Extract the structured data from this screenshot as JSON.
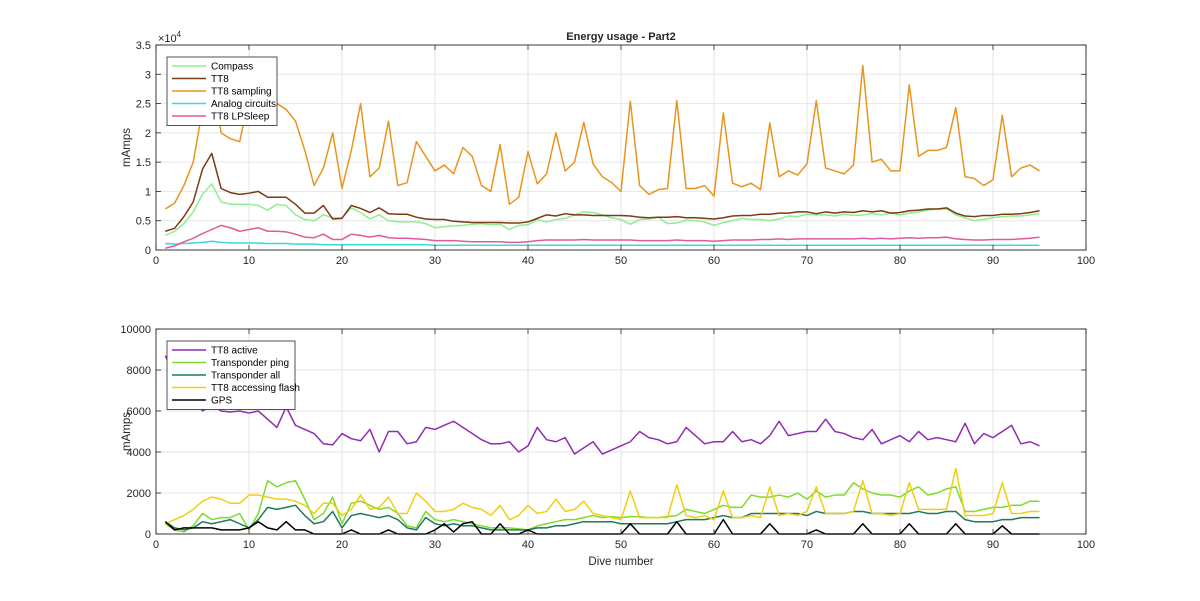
{
  "chart_data": [
    {
      "type": "line",
      "title": "Energy usage - Part2",
      "xlabel": "",
      "ylabel": "mAmps",
      "xlim": [
        0,
        100
      ],
      "ylim": [
        0,
        35000
      ],
      "xticks": [
        0,
        10,
        20,
        30,
        40,
        50,
        60,
        70,
        80,
        90,
        100
      ],
      "yticks": [
        0,
        5000,
        10000,
        15000,
        20000,
        25000,
        30000,
        35000
      ],
      "ytick_labels": [
        "0",
        "0.5",
        "1",
        "1.5",
        "2",
        "2.5",
        "3",
        "3.5"
      ],
      "exponent_label": "×10",
      "exponent_power": "4",
      "grid": true,
      "legend_position": "top-left",
      "series": [
        {
          "name": "Compass",
          "color": "#90ee90",
          "x_start": 1,
          "values": [
            2500,
            3200,
            4500,
            6500,
            9500,
            11300,
            8200,
            7800,
            7800,
            7800,
            7600,
            6800,
            7800,
            7600,
            6000,
            5200,
            5000,
            6000,
            5500,
            5500,
            7200,
            6400,
            5300,
            6000,
            5000,
            4800,
            4800,
            4800,
            4500,
            3800,
            4000,
            4100,
            4200,
            4400,
            4500,
            4300,
            4400,
            3500,
            4200,
            4300,
            5200,
            4800,
            5200,
            5400,
            6000,
            6500,
            6400,
            6000,
            5500,
            5200,
            4400,
            5200,
            5300,
            5600,
            4500,
            4600,
            5100,
            5000,
            4800,
            4200,
            4700,
            5000,
            5400,
            5200,
            5200,
            5000,
            5300,
            5800,
            5700,
            6100,
            6000,
            6000,
            5800,
            6100,
            5900,
            6000,
            6200,
            6000,
            6300,
            6000,
            6300,
            6500,
            6800,
            7000,
            7000,
            6000,
            5500,
            5000,
            5200,
            5500,
            5700,
            5800,
            5800,
            6000,
            6200
          ]
        },
        {
          "name": "TT8",
          "color": "#7b3b14",
          "x_start": 1,
          "values": [
            3200,
            3700,
            5700,
            8200,
            13800,
            16500,
            10500,
            9800,
            9500,
            9700,
            10000,
            9000,
            9000,
            9000,
            7800,
            6300,
            6300,
            7600,
            5300,
            5400,
            7600,
            7100,
            6400,
            7200,
            6200,
            6100,
            6100,
            5600,
            5300,
            5200,
            5200,
            4900,
            4800,
            4700,
            4700,
            4700,
            4700,
            4600,
            4600,
            4800,
            5400,
            6000,
            5800,
            6200,
            6000,
            6000,
            5900,
            5900,
            5900,
            5900,
            5800,
            5600,
            5500,
            5600,
            5600,
            5700,
            5500,
            5500,
            5400,
            5300,
            5500,
            5800,
            5900,
            5900,
            6100,
            6100,
            6300,
            6300,
            6500,
            6500,
            6200,
            6500,
            6300,
            6500,
            6400,
            6700,
            6500,
            6700,
            6300,
            6400,
            6700,
            6800,
            7000,
            7000,
            7200,
            6300,
            5800,
            5700,
            5900,
            5900,
            6100,
            6100,
            6200,
            6400,
            6700
          ]
        },
        {
          "name": "TT8 sampling",
          "color": "#e8951f",
          "x_start": 1,
          "values": [
            7000,
            8000,
            11000,
            15000,
            24000,
            30000,
            20000,
            19000,
            18500,
            26000,
            26500,
            21500,
            25000,
            24000,
            22000,
            17000,
            11000,
            14000,
            20000,
            10500,
            17000,
            25000,
            12500,
            14000,
            22000,
            11000,
            11500,
            18500,
            16000,
            13500,
            14500,
            13000,
            17500,
            16000,
            11000,
            10000,
            18000,
            7800,
            9000,
            16800,
            11300,
            13000,
            20000,
            13500,
            15000,
            21800,
            14700,
            12500,
            11500,
            10000,
            25400,
            11000,
            9500,
            10300,
            10500,
            25500,
            10500,
            10500,
            11000,
            9200,
            23400,
            11400,
            10800,
            11400,
            10300,
            21700,
            12500,
            13500,
            12800,
            14700,
            25500,
            14000,
            13500,
            13000,
            14500,
            31500,
            15000,
            15500,
            13500,
            13500,
            28200,
            16000,
            17000,
            17000,
            17500,
            24300,
            12500,
            12200,
            11000,
            12000,
            23000,
            12500,
            14000,
            14500,
            13500
          ]
        },
        {
          "name": "Analog circuits",
          "color": "#3ad8e0",
          "x_start": 1,
          "values": [
            1100,
            1000,
            1100,
            1200,
            1300,
            1500,
            1300,
            1200,
            1200,
            1200,
            1200,
            1100,
            1100,
            1100,
            1000,
            1000,
            1000,
            900,
            900,
            900,
            900,
            900,
            900,
            900,
            900,
            900,
            900,
            900,
            900,
            800,
            800,
            800,
            800,
            800,
            800,
            800,
            800,
            800,
            800,
            800,
            800,
            800,
            800,
            800,
            800,
            800,
            800,
            800,
            800,
            800,
            800,
            800,
            800,
            800,
            800,
            800,
            800,
            800,
            800,
            800,
            800,
            800,
            800,
            800,
            800,
            800,
            800,
            800,
            800,
            800,
            800,
            800,
            800,
            800,
            800,
            800,
            800,
            800,
            800,
            800,
            800,
            800,
            800,
            800,
            800,
            800,
            800,
            800,
            800,
            800,
            800,
            800,
            800,
            800,
            800
          ]
        },
        {
          "name": "TT8 LPSleep",
          "color": "#e35a9a",
          "x_start": 1,
          "values": [
            300,
            700,
            1400,
            2000,
            2800,
            3500,
            4200,
            3800,
            3200,
            3500,
            3800,
            3200,
            3200,
            3100,
            2700,
            2200,
            2100,
            2700,
            1800,
            1800,
            2700,
            2500,
            2200,
            2500,
            2100,
            2000,
            2000,
            1900,
            1800,
            1600,
            1600,
            1600,
            1500,
            1400,
            1400,
            1400,
            1400,
            1300,
            1300,
            1400,
            1600,
            1700,
            1700,
            1700,
            1700,
            1800,
            1700,
            1700,
            1700,
            1700,
            1700,
            1600,
            1600,
            1600,
            1600,
            1700,
            1600,
            1600,
            1600,
            1500,
            1600,
            1700,
            1700,
            1700,
            1800,
            1800,
            1900,
            1800,
            1900,
            1900,
            1900,
            1900,
            1900,
            1900,
            1900,
            2000,
            1900,
            2000,
            1900,
            2000,
            2100,
            2000,
            2100,
            2100,
            2200,
            1900,
            1800,
            1700,
            1700,
            1800,
            1800,
            1800,
            1900,
            2000,
            2200
          ]
        }
      ]
    },
    {
      "type": "line",
      "title": "",
      "xlabel": "Dive number",
      "ylabel": "mAmps",
      "xlim": [
        0,
        100
      ],
      "ylim": [
        0,
        10000
      ],
      "xticks": [
        0,
        10,
        20,
        30,
        40,
        50,
        60,
        70,
        80,
        90,
        100
      ],
      "yticks": [
        0,
        2000,
        4000,
        6000,
        8000,
        10000
      ],
      "ytick_labels": [
        "0",
        "2000",
        "4000",
        "6000",
        "8000",
        "10000"
      ],
      "grid": true,
      "legend_position": "top-left",
      "series": [
        {
          "name": "TT8 active",
          "color": "#8e2db2",
          "x_start": 1,
          "values": [
            8700,
            7800,
            7400,
            6800,
            6000,
            6300,
            6000,
            5950,
            6000,
            5900,
            6000,
            5600,
            5200,
            6200,
            5300,
            5100,
            4900,
            4400,
            4350,
            4900,
            4650,
            4550,
            5100,
            4000,
            5000,
            5000,
            4400,
            4500,
            5200,
            5100,
            5300,
            5500,
            5200,
            4900,
            4600,
            4400,
            4400,
            4500,
            4000,
            4300,
            5200,
            4600,
            4500,
            4700,
            3900,
            4200,
            4500,
            3900,
            4100,
            4300,
            4500,
            5000,
            4700,
            4600,
            4400,
            4500,
            5200,
            4800,
            4400,
            4500,
            4500,
            5000,
            4500,
            4600,
            4400,
            4800,
            5500,
            4800,
            4900,
            5000,
            5000,
            5600,
            5000,
            4900,
            4700,
            4600,
            5100,
            4400,
            4600,
            4800,
            4500,
            5000,
            4600,
            4700,
            4600,
            4500,
            5400,
            4400,
            4900,
            4700,
            5000,
            5300,
            4400,
            4500,
            4300
          ]
        },
        {
          "name": "Transponder ping",
          "color": "#7edb2e",
          "x_start": 1,
          "values": [
            500,
            200,
            100,
            400,
            1000,
            700,
            800,
            800,
            1000,
            200,
            1000,
            2600,
            2300,
            2500,
            2600,
            1700,
            700,
            1000,
            1800,
            500,
            1500,
            1600,
            1400,
            1200,
            1300,
            1000,
            400,
            300,
            1100,
            700,
            600,
            700,
            600,
            500,
            400,
            300,
            300,
            300,
            250,
            200,
            400,
            500,
            600,
            700,
            700,
            800,
            900,
            800,
            850,
            800,
            850,
            850,
            800,
            800,
            850,
            900,
            1200,
            1100,
            1000,
            1200,
            1400,
            1300,
            1300,
            1900,
            1800,
            1800,
            1900,
            1800,
            2000,
            1700,
            2100,
            1800,
            1900,
            1900,
            2500,
            2200,
            2000,
            1900,
            1900,
            1800,
            2100,
            2300,
            1900,
            2000,
            2200,
            2300,
            1100,
            1100,
            1200,
            1300,
            1300,
            1400,
            1400,
            1600,
            1600
          ]
        },
        {
          "name": "Transponder all",
          "color": "#1e7a5a",
          "x_start": 1,
          "values": [
            600,
            300,
            200,
            300,
            600,
            500,
            600,
            700,
            500,
            300,
            700,
            1300,
            1200,
            1300,
            1400,
            900,
            500,
            600,
            1100,
            300,
            900,
            1000,
            900,
            800,
            900,
            700,
            300,
            200,
            800,
            500,
            400,
            500,
            400,
            400,
            300,
            200,
            200,
            200,
            200,
            200,
            300,
            300,
            400,
            400,
            500,
            600,
            600,
            600,
            600,
            500,
            500,
            500,
            500,
            500,
            500,
            600,
            700,
            700,
            700,
            800,
            900,
            800,
            800,
            1000,
            1000,
            1000,
            1000,
            1000,
            1000,
            900,
            1100,
            1000,
            1000,
            1000,
            1100,
            1100,
            1000,
            1000,
            1000,
            1000,
            1000,
            1100,
            1000,
            1000,
            1100,
            1100,
            700,
            600,
            600,
            600,
            700,
            700,
            800,
            800,
            800
          ]
        },
        {
          "name": "TT8 accessing flash",
          "color": "#f0cf10",
          "x_start": 1,
          "values": [
            500,
            700,
            900,
            1200,
            1600,
            1800,
            1700,
            1500,
            1500,
            1900,
            1900,
            1800,
            1700,
            1700,
            1600,
            1400,
            1000,
            1500,
            1500,
            900,
            1200,
            1900,
            1200,
            1300,
            1800,
            1000,
            1000,
            2000,
            1600,
            1100,
            1100,
            1200,
            1500,
            1300,
            1200,
            900,
            1400,
            700,
            900,
            1400,
            1000,
            1100,
            1700,
            1100,
            1200,
            1600,
            1000,
            900,
            800,
            700,
            2100,
            800,
            800,
            800,
            800,
            2400,
            900,
            800,
            900,
            700,
            2100,
            800,
            800,
            900,
            800,
            2300,
            900,
            1000,
            900,
            1100,
            2300,
            1000,
            1000,
            1000,
            1100,
            2600,
            1000,
            1000,
            900,
            1000,
            2500,
            1200,
            1200,
            1200,
            1200,
            3200,
            900,
            900,
            900,
            1000,
            2500,
            1000,
            1000,
            1100,
            1100
          ]
        },
        {
          "name": "GPS",
          "color": "#000000",
          "x_start": 1,
          "values": [
            600,
            200,
            300,
            300,
            300,
            300,
            200,
            200,
            200,
            300,
            600,
            300,
            200,
            600,
            200,
            200,
            0,
            0,
            0,
            0,
            200,
            0,
            0,
            0,
            200,
            0,
            0,
            0,
            0,
            200,
            500,
            100,
            500,
            600,
            0,
            0,
            500,
            0,
            0,
            200,
            0,
            0,
            0,
            0,
            0,
            0,
            0,
            0,
            0,
            0,
            500,
            0,
            0,
            0,
            0,
            600,
            0,
            0,
            0,
            0,
            700,
            0,
            0,
            0,
            0,
            500,
            0,
            0,
            0,
            0,
            200,
            0,
            0,
            0,
            0,
            500,
            0,
            0,
            0,
            0,
            500,
            0,
            0,
            0,
            0,
            500,
            0,
            0,
            0,
            0,
            400,
            0,
            0,
            0,
            0
          ]
        }
      ]
    }
  ]
}
